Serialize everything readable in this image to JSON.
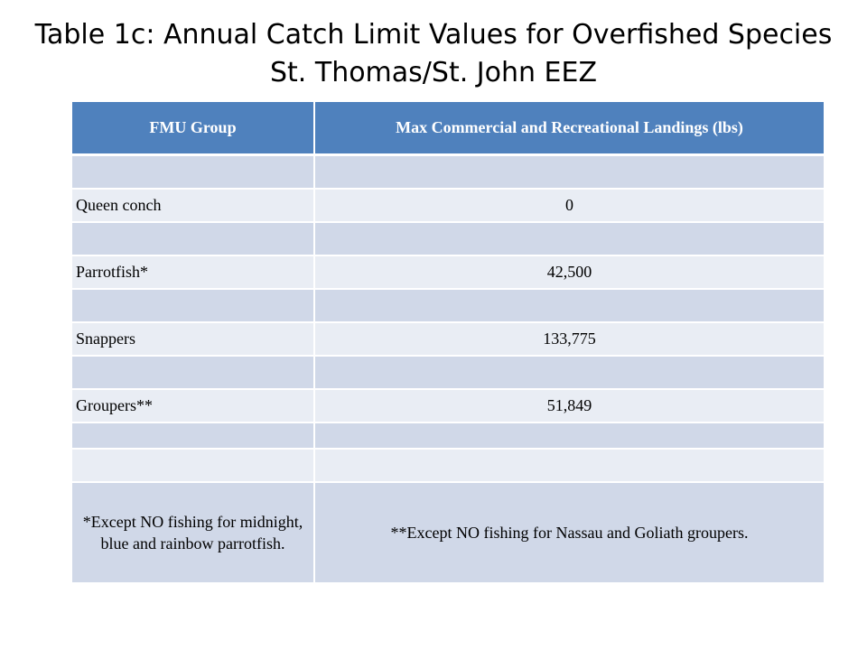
{
  "title": {
    "line1": "Table 1c: Annual Catch Limit Values for Overfished Species",
    "line2": "St. Thomas/St. John EEZ"
  },
  "table": {
    "headers": [
      "FMU Group",
      "Max Commercial and Recreational Landings (lbs)"
    ],
    "rows": [
      {
        "group": "",
        "value": ""
      },
      {
        "group": "Queen conch",
        "value": "0"
      },
      {
        "group": "",
        "value": ""
      },
      {
        "group": "Parrotfish*",
        "value": "42,500"
      },
      {
        "group": "",
        "value": ""
      },
      {
        "group": "Snappers",
        "value": "133,775"
      },
      {
        "group": "",
        "value": ""
      },
      {
        "group": "Groupers**",
        "value": "51,849"
      },
      {
        "group": "",
        "value": ""
      },
      {
        "group": "",
        "value": ""
      }
    ],
    "footnotes": {
      "parrotfish": "*Except NO fishing for midnight, blue and rainbow parrotfish.",
      "groupers": "**Except NO fishing for Nassau and Goliath groupers."
    }
  },
  "colors": {
    "header_bg": "#4f81bd",
    "row_dark": "#d0d8e8",
    "row_light": "#e9edf4"
  }
}
